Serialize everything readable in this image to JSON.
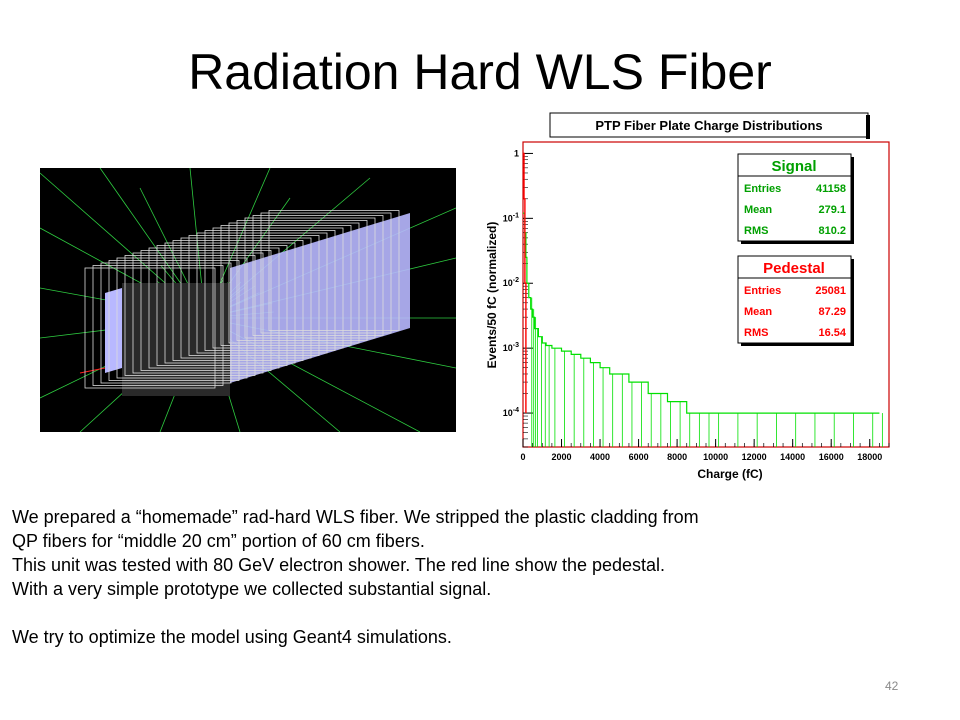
{
  "slide": {
    "title": "Radiation Hard WLS Fiber",
    "page_number": "42"
  },
  "body": {
    "lines": [
      "We prepared a “homemade” rad-hard WLS fiber. We stripped the plastic cladding from",
      "QP fibers for “middle 20 cm” portion of 60 cm fibers.",
      "This unit was tested with 80 GeV electron shower. The red line show the pedestal.",
      "With a very simple prototype we collected substantial signal."
    ],
    "closing": "We try to optimize the model using Geant4 simulations."
  },
  "chart_data": {
    "type": "line",
    "title": "PTP Fiber Plate Charge Distributions",
    "xlabel": "Charge (fC)",
    "ylabel": "Events/50 fC (normalized)",
    "xlim": [
      0,
      19000
    ],
    "ylim": [
      3e-05,
      1.5
    ],
    "yscale": "log",
    "x_ticks": [
      "0",
      "2000",
      "4000",
      "6000",
      "8000",
      "10000",
      "12000",
      "14000",
      "16000",
      "18000"
    ],
    "y_ticks": [
      "1",
      "10^-1",
      "10^-2",
      "10^-3",
      "10^-4"
    ],
    "series": [
      {
        "name": "Signal",
        "color": "#00e000",
        "x": [
          0,
          100,
          150,
          200,
          300,
          400,
          500,
          600,
          800,
          1000,
          1200,
          1500,
          2000,
          2500,
          3000,
          3500,
          4000,
          4500,
          5000,
          5500,
          6000,
          6500,
          7000,
          7500,
          8000,
          8500,
          9000,
          9500,
          10000,
          11000,
          12000,
          13000,
          14000,
          15000,
          16000,
          17000,
          18000,
          18500
        ],
        "values": [
          0.12,
          0.06,
          0.025,
          0.01,
          0.006,
          0.004,
          0.003,
          0.002,
          0.0015,
          0.0012,
          0.0011,
          0.001,
          0.0009,
          0.0008,
          0.0007,
          0.0006,
          0.0005,
          0.0004,
          0.0004,
          0.0003,
          0.0003,
          0.0002,
          0.0002,
          0.00015,
          0.00015,
          0.0001,
          0.0001,
          0.0001,
          0.0001,
          0.0001,
          0.0001,
          0.0001,
          0.0001,
          0.0001,
          0.0001,
          0.0001,
          0.0001,
          0.0001
        ]
      },
      {
        "name": "Pedestal",
        "color": "#ff0000",
        "x": [
          0,
          50,
          100,
          150
        ],
        "values": [
          1,
          0.2,
          0.01,
          0.0001
        ]
      }
    ],
    "stat_boxes": [
      {
        "title": "Signal",
        "title_color": "#00a000",
        "rows": [
          {
            "label": "Entries",
            "value": "41158"
          },
          {
            "label": "Mean",
            "value": "279.1"
          },
          {
            "label": "RMS",
            "value": "810.2"
          }
        ]
      },
      {
        "title": "Pedestal",
        "title_color": "#ff0000",
        "rows": [
          {
            "label": "Entries",
            "value": "25081"
          },
          {
            "label": "Mean",
            "value": "87.29"
          },
          {
            "label": "RMS",
            "value": "16.54"
          }
        ]
      }
    ]
  }
}
